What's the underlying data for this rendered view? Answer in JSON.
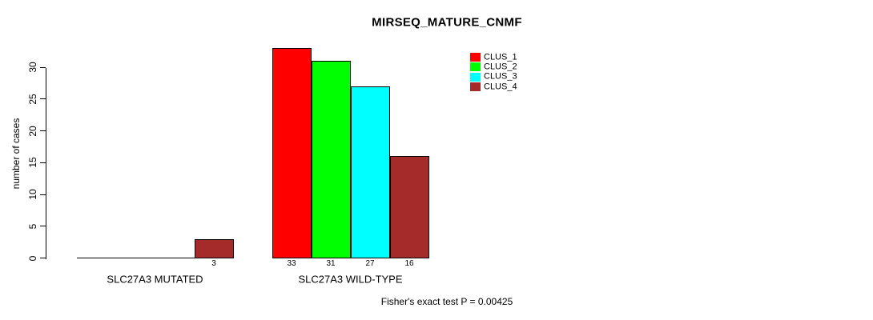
{
  "title": "MIRSEQ_MATURE_CNMF",
  "annotation": "Fisher's exact test P = 0.00425",
  "y_axis": {
    "label": "number of cases"
  },
  "legend": {
    "items": [
      {
        "label": "CLUS_1",
        "color": "#ff0000"
      },
      {
        "label": "CLUS_2",
        "color": "#00ff00"
      },
      {
        "label": "CLUS_3",
        "color": "#00ffff"
      },
      {
        "label": "CLUS_4",
        "color": "#a52a2a"
      }
    ]
  },
  "chart_data": {
    "type": "bar",
    "title": "MIRSEQ_MATURE_CNMF",
    "xlabel": "",
    "ylabel": "number of cases",
    "categories": [
      "SLC27A3 MUTATED",
      "SLC27A3 WILD-TYPE"
    ],
    "series": [
      {
        "name": "CLUS_1",
        "color": "#ff0000",
        "values": [
          0,
          33
        ]
      },
      {
        "name": "CLUS_2",
        "color": "#00ff00",
        "values": [
          0,
          31
        ]
      },
      {
        "name": "CLUS_3",
        "color": "#00ffff",
        "values": [
          0,
          27
        ]
      },
      {
        "name": "CLUS_4",
        "color": "#a52a2a",
        "values": [
          3,
          16
        ]
      }
    ],
    "bar_value_labels": [
      [
        "",
        "",
        "",
        "3"
      ],
      [
        "33",
        "31",
        "27",
        "16"
      ]
    ],
    "y_ticks": [
      0,
      5,
      10,
      15,
      20,
      25,
      30
    ],
    "ylim": [
      0,
      33
    ],
    "grid": false,
    "legend_position": "top-right",
    "annotation": "Fisher's exact test P = 0.00425"
  }
}
